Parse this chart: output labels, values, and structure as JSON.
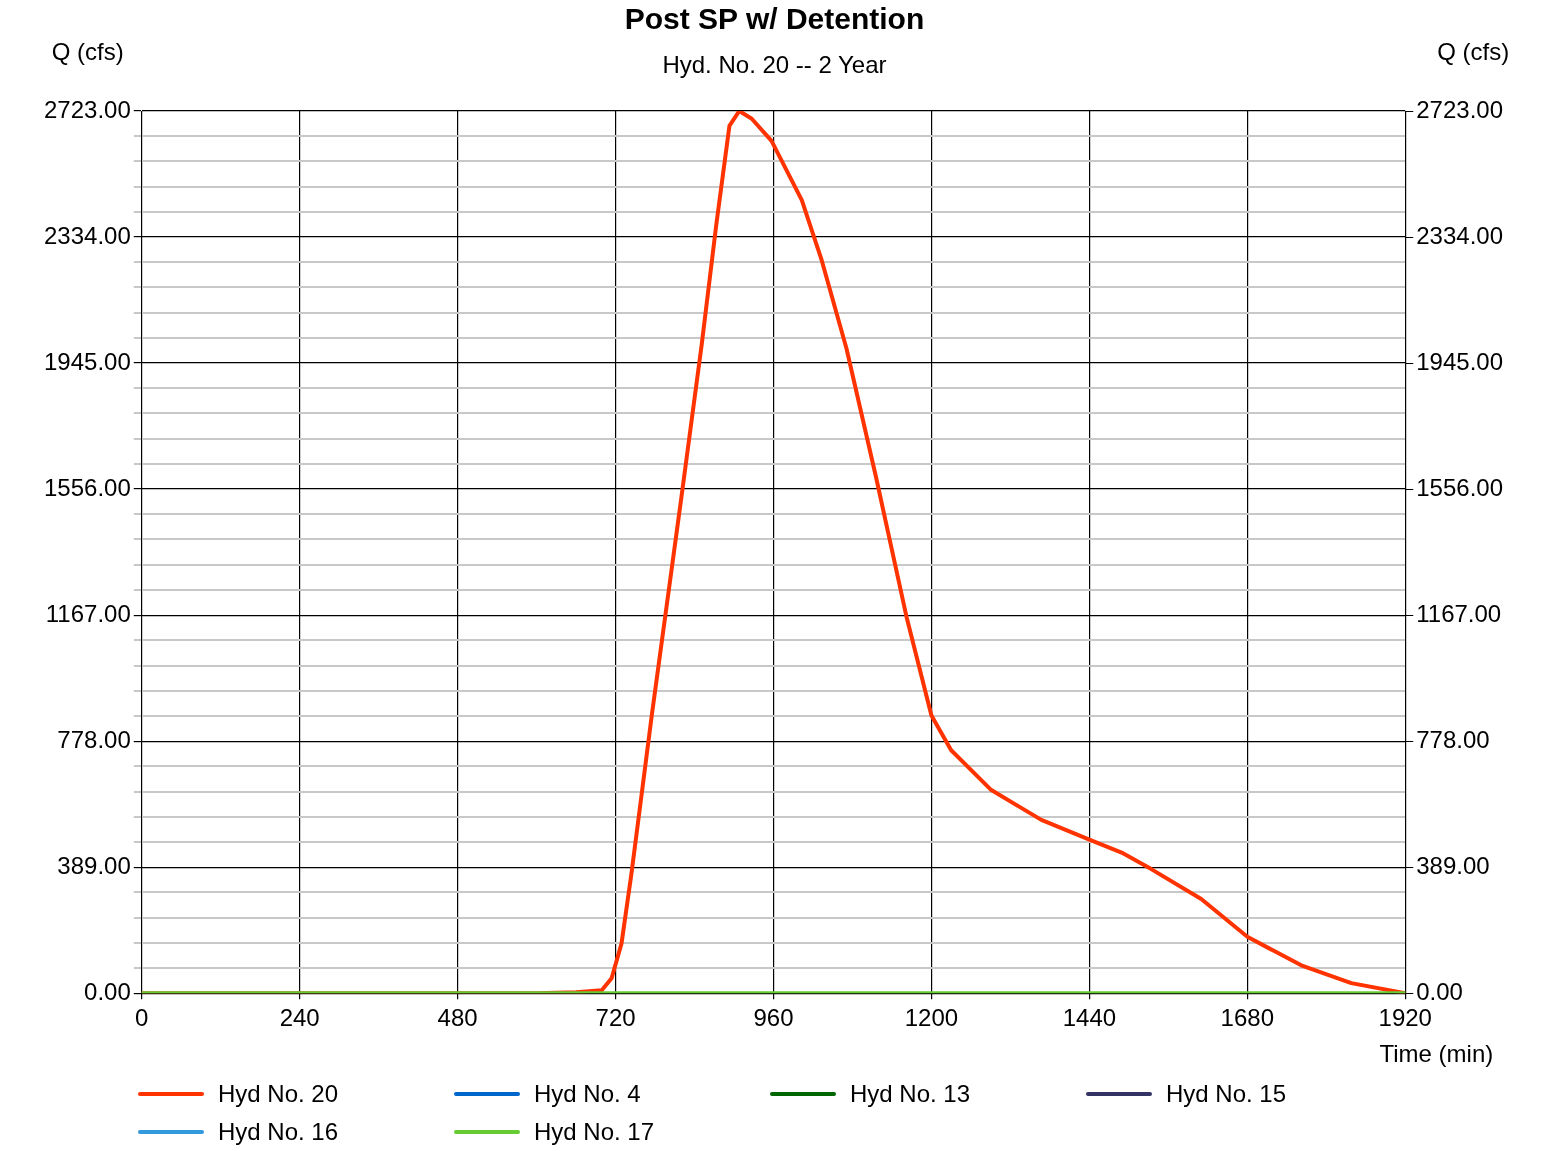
{
  "chart_data": {
    "type": "line",
    "title": "Post SP w/ Detention",
    "subtitle": "Hyd. No. 20 -- 2 Year",
    "xlabel": "Time (min)",
    "ylabel": "Q (cfs)",
    "y2label": "Q (cfs)",
    "xlim": [
      0,
      1920
    ],
    "xticks": [
      0,
      240,
      480,
      720,
      960,
      1200,
      1440,
      1680,
      1920
    ],
    "ylim": [
      0,
      2723
    ],
    "yticks": [
      {
        "value": 0,
        "label": "0.00"
      },
      {
        "value": 77.8,
        "label": null
      },
      {
        "value": 155.6,
        "label": null
      },
      {
        "value": 233.4,
        "label": null
      },
      {
        "value": 311.2,
        "label": null
      },
      {
        "value": 389,
        "label": "389.00"
      },
      {
        "value": 466.8,
        "label": null
      },
      {
        "value": 544.6,
        "label": null
      },
      {
        "value": 622.4,
        "label": null
      },
      {
        "value": 700.2,
        "label": null
      },
      {
        "value": 778,
        "label": "778.00"
      },
      {
        "value": 855.8,
        "label": null
      },
      {
        "value": 933.6,
        "label": null
      },
      {
        "value": 1011.4,
        "label": null
      },
      {
        "value": 1089.2,
        "label": null
      },
      {
        "value": 1167,
        "label": "1167.00"
      },
      {
        "value": 1244.8,
        "label": null
      },
      {
        "value": 1322.6,
        "label": null
      },
      {
        "value": 1400.4,
        "label": null
      },
      {
        "value": 1478.2,
        "label": null
      },
      {
        "value": 1556,
        "label": "1556.00"
      },
      {
        "value": 1633.8,
        "label": null
      },
      {
        "value": 1711.6,
        "label": null
      },
      {
        "value": 1789.4,
        "label": null
      },
      {
        "value": 1867.2,
        "label": null
      },
      {
        "value": 1945,
        "label": "1945.00"
      },
      {
        "value": 2022.8,
        "label": null
      },
      {
        "value": 2100.6,
        "label": null
      },
      {
        "value": 2178.4,
        "label": null
      },
      {
        "value": 2256.2,
        "label": null
      },
      {
        "value": 2334,
        "label": "2334.00"
      },
      {
        "value": 2411.8,
        "label": null
      },
      {
        "value": 2489.6,
        "label": null
      },
      {
        "value": 2567.4,
        "label": null
      },
      {
        "value": 2645.2,
        "label": null
      },
      {
        "value": 2723,
        "label": "2723.00"
      }
    ],
    "y2lim": [
      0,
      2723
    ],
    "y2ticks": [
      {
        "value": 0,
        "label": "0.00"
      },
      {
        "value": 389,
        "label": "389.00"
      },
      {
        "value": 778,
        "label": "778.00"
      },
      {
        "value": 1167,
        "label": "1167.00"
      },
      {
        "value": 1556,
        "label": "1556.00"
      },
      {
        "value": 1945,
        "label": "1945.00"
      },
      {
        "value": 2334,
        "label": "2334.00"
      },
      {
        "value": 2723,
        "label": "2723.00"
      }
    ],
    "grid": true,
    "legend": "bottom",
    "marker": "none",
    "line_style": "solid",
    "series": [
      {
        "name": "Hyd No. 20",
        "color": "#ff3300",
        "x": [
          0,
          600,
          660,
          699,
          714,
          729,
          744,
          775,
          820,
          851,
          873,
          893,
          908,
          927,
          957,
          1003,
          1033,
          1071,
          1116,
          1162,
          1200,
          1230,
          1291,
          1367,
          1440,
          1489,
          1534,
          1610,
          1680,
          1762,
          1838,
          1920
        ],
        "values": [
          0,
          0,
          3,
          9,
          46,
          153,
          367,
          857,
          1530,
          2004,
          2371,
          2677,
          2723,
          2699,
          2631,
          2448,
          2264,
          1989,
          1591,
          1163,
          857,
          750,
          627,
          535,
          474,
          434,
          383,
          291,
          174,
          86,
          31,
          0
        ]
      },
      {
        "name": "Hyd No. 4",
        "color": "#0066cc"
      },
      {
        "name": "Hyd No. 13",
        "color": "#006600"
      },
      {
        "name": "Hyd No. 15",
        "color": "#333366"
      },
      {
        "name": "Hyd No. 16",
        "color": "#3399dd"
      },
      {
        "name": "Hyd No. 17",
        "color": "#66cc33",
        "x": [
          0,
          1920
        ],
        "values": [
          0,
          0
        ]
      }
    ]
  }
}
